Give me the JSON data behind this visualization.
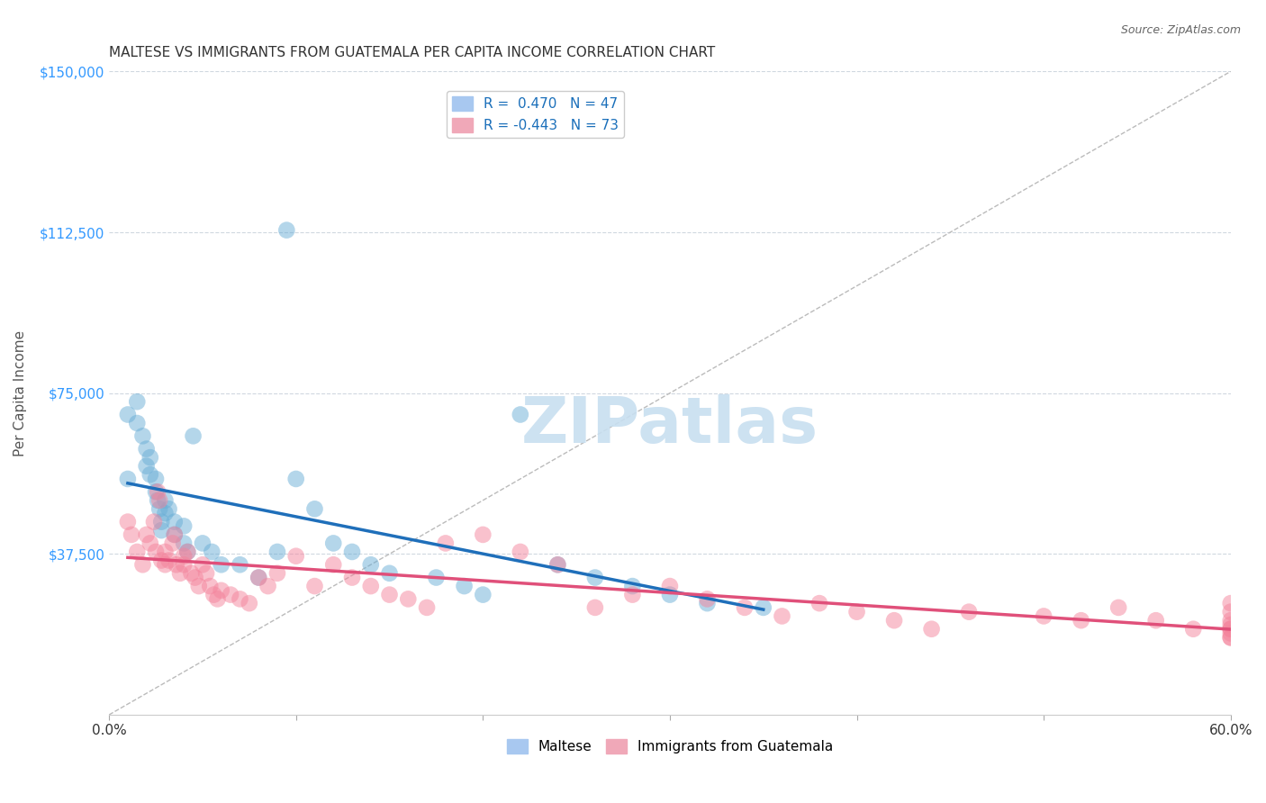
{
  "title": "MALTESE VS IMMIGRANTS FROM GUATEMALA PER CAPITA INCOME CORRELATION CHART",
  "source": "Source: ZipAtlas.com",
  "xlabel": "",
  "ylabel": "Per Capita Income",
  "xlim": [
    0.0,
    0.6
  ],
  "ylim": [
    0,
    150000
  ],
  "yticks": [
    0,
    37500,
    75000,
    112500,
    150000
  ],
  "ytick_labels": [
    "",
    "$37,500",
    "$75,000",
    "$112,500",
    "$150,000"
  ],
  "xticks": [
    0.0,
    0.1,
    0.2,
    0.3,
    0.4,
    0.5,
    0.6
  ],
  "xtick_labels": [
    "0.0%",
    "",
    "",
    "",
    "",
    "",
    "60.0%"
  ],
  "legend_entries": [
    {
      "label": "R =  0.470   N = 47",
      "color": "#a8c8f0"
    },
    {
      "label": "R = -0.443   N = 73",
      "color": "#f0a8b8"
    }
  ],
  "blue_color": "#6aaed6",
  "pink_color": "#f4849c",
  "blue_line_color": "#1f6fba",
  "pink_line_color": "#e0507a",
  "blue_R": 0.47,
  "blue_N": 47,
  "pink_R": -0.443,
  "pink_N": 73,
  "watermark": "ZIPatlas",
  "watermark_color": "#c8dff0",
  "blue_scatter_x": [
    0.01,
    0.01,
    0.015,
    0.015,
    0.018,
    0.02,
    0.02,
    0.022,
    0.022,
    0.025,
    0.025,
    0.026,
    0.027,
    0.028,
    0.028,
    0.03,
    0.03,
    0.032,
    0.035,
    0.035,
    0.04,
    0.04,
    0.042,
    0.045,
    0.05,
    0.055,
    0.06,
    0.07,
    0.08,
    0.09,
    0.095,
    0.1,
    0.11,
    0.12,
    0.13,
    0.14,
    0.15,
    0.175,
    0.19,
    0.2,
    0.22,
    0.24,
    0.26,
    0.28,
    0.3,
    0.32,
    0.35
  ],
  "blue_scatter_y": [
    55000,
    70000,
    73000,
    68000,
    65000,
    62000,
    58000,
    60000,
    56000,
    55000,
    52000,
    50000,
    48000,
    45000,
    43000,
    50000,
    47000,
    48000,
    45000,
    42000,
    44000,
    40000,
    38000,
    65000,
    40000,
    38000,
    35000,
    35000,
    32000,
    38000,
    113000,
    55000,
    48000,
    40000,
    38000,
    35000,
    33000,
    32000,
    30000,
    28000,
    70000,
    35000,
    32000,
    30000,
    28000,
    26000,
    25000
  ],
  "pink_scatter_x": [
    0.01,
    0.012,
    0.015,
    0.018,
    0.02,
    0.022,
    0.024,
    0.025,
    0.026,
    0.027,
    0.028,
    0.03,
    0.03,
    0.032,
    0.034,
    0.035,
    0.036,
    0.038,
    0.04,
    0.04,
    0.042,
    0.044,
    0.046,
    0.048,
    0.05,
    0.052,
    0.054,
    0.056,
    0.058,
    0.06,
    0.065,
    0.07,
    0.075,
    0.08,
    0.085,
    0.09,
    0.1,
    0.11,
    0.12,
    0.13,
    0.14,
    0.15,
    0.16,
    0.17,
    0.18,
    0.2,
    0.22,
    0.24,
    0.26,
    0.28,
    0.3,
    0.32,
    0.34,
    0.36,
    0.38,
    0.4,
    0.42,
    0.44,
    0.46,
    0.5,
    0.52,
    0.54,
    0.56,
    0.58,
    0.6,
    0.6,
    0.6,
    0.6,
    0.6,
    0.6,
    0.6,
    0.6,
    0.6
  ],
  "pink_scatter_y": [
    45000,
    42000,
    38000,
    35000,
    42000,
    40000,
    45000,
    38000,
    52000,
    50000,
    36000,
    38000,
    35000,
    36000,
    40000,
    42000,
    35000,
    33000,
    37000,
    35000,
    38000,
    33000,
    32000,
    30000,
    35000,
    33000,
    30000,
    28000,
    27000,
    29000,
    28000,
    27000,
    26000,
    32000,
    30000,
    33000,
    37000,
    30000,
    35000,
    32000,
    30000,
    28000,
    27000,
    25000,
    40000,
    42000,
    38000,
    35000,
    25000,
    28000,
    30000,
    27000,
    25000,
    23000,
    26000,
    24000,
    22000,
    20000,
    24000,
    23000,
    22000,
    25000,
    22000,
    20000,
    18000,
    22000,
    24000,
    26000,
    20000,
    19000,
    21000,
    18000,
    20000
  ],
  "background_color": "#ffffff",
  "grid_color": "#d0d8e0",
  "title_color": "#333333",
  "axis_label_color": "#555555",
  "ytick_color": "#3399ff",
  "xtick_color": "#333333"
}
